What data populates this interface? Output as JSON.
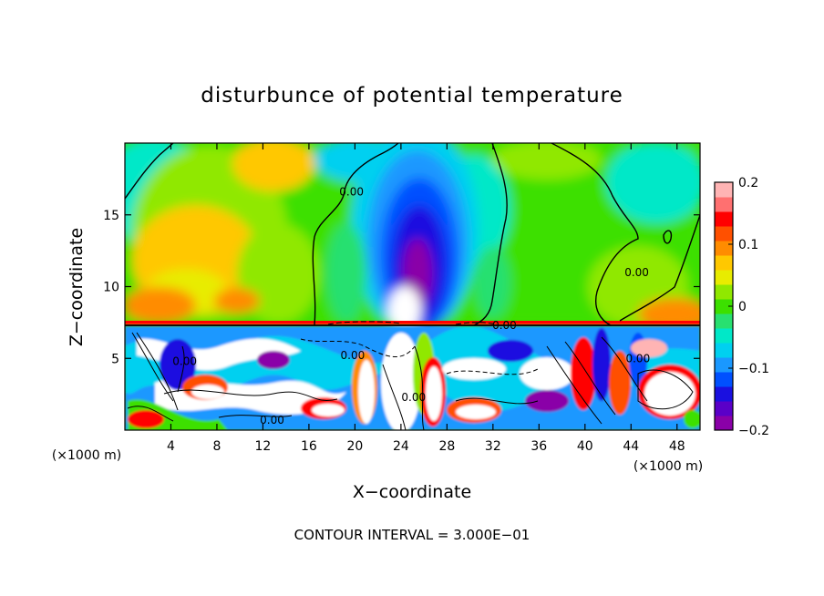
{
  "chart_data": {
    "type": "heatmap",
    "title": "disturbunce of potential temperature",
    "xlabel": "X−coordinate",
    "ylabel": "Z−coordinate",
    "x_unit_left": "(×1000 m)",
    "x_unit_right": "(×1000 m)",
    "xlim": [
      0,
      50
    ],
    "ylim": [
      0,
      20
    ],
    "x_ticks": [
      4,
      8,
      12,
      16,
      20,
      24,
      28,
      32,
      36,
      40,
      44,
      48
    ],
    "x_tick_labels": [
      "4",
      "8",
      "12",
      "16",
      "20",
      "24",
      "28",
      "32",
      "36",
      "40",
      "44",
      "48"
    ],
    "y_ticks": [
      5,
      10,
      15
    ],
    "y_tick_labels": [
      "5",
      "10",
      "15"
    ],
    "interface_height": 7.2,
    "colorbar": {
      "min": -0.2,
      "max": 0.2,
      "tick_values": [
        0.2,
        0.1,
        0,
        -0.1,
        -0.2
      ],
      "tick_labels": [
        "0.2",
        "0.1",
        "0",
        "−0.1",
        "−0.2"
      ],
      "colors": [
        "#8a00a8",
        "#5a00c8",
        "#1a10e0",
        "#0050ff",
        "#1a98ff",
        "#00d0f0",
        "#00e8c8",
        "#28e070",
        "#3ce000",
        "#90e800",
        "#e8ec00",
        "#ffc800",
        "#ff8c00",
        "#ff5000",
        "#ff0000",
        "#ff7070",
        "#ffb4b4"
      ]
    },
    "contour_labels": [
      {
        "text": "0.00",
        "x": 19.7,
        "z": 16.6
      },
      {
        "text": "0.00",
        "x": 44.5,
        "z": 11.0
      },
      {
        "text": "0.00",
        "x": 33.0,
        "z": 7.3
      },
      {
        "text": "0.00",
        "x": 19.8,
        "z": 5.2
      },
      {
        "text": "0.00",
        "x": 5.2,
        "z": 4.8
      },
      {
        "text": "0.00",
        "x": 44.6,
        "z": 5.0
      },
      {
        "text": "0.00",
        "x": 25.1,
        "z": 2.3
      },
      {
        "text": "0.00",
        "x": 12.8,
        "z": 0.7
      }
    ],
    "contour_interval_text": "CONTOUR INTERVAL = 3.000E−01"
  }
}
